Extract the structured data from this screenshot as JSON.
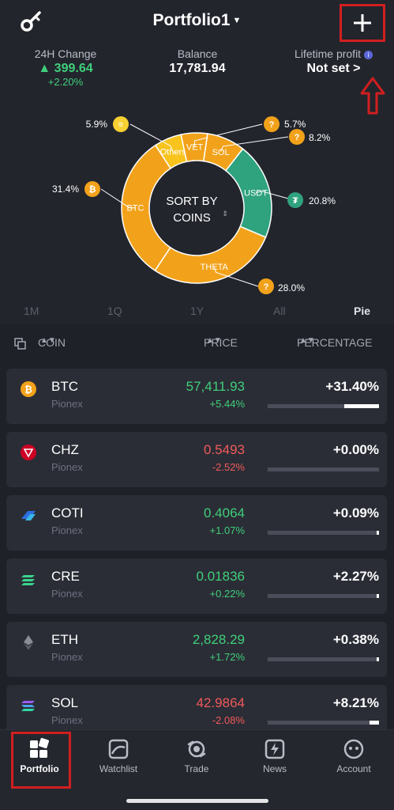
{
  "header": {
    "title": "Portfolio1",
    "stats": {
      "change_label": "24H Change",
      "change_value": "▲ 399.64",
      "change_pct": "+2.20%",
      "balance_label": "Balance",
      "balance_value": "17,781.94",
      "profit_label": "Lifetime profit",
      "profit_value": "Not set >"
    }
  },
  "chart_data": {
    "type": "pie",
    "center_label": "SORT BY COINS",
    "slices": [
      {
        "label": "USDT",
        "value": 20.8,
        "color": "#2fa27e",
        "pct_text": "20.8%"
      },
      {
        "label": "THETA",
        "value": 28.0,
        "color": "#f2a21a",
        "pct_text": "28.0%"
      },
      {
        "label": "BTC",
        "value": 31.4,
        "color": "#f2a21a",
        "pct_text": "31.4%"
      },
      {
        "label": "Others",
        "value": 5.9,
        "color": "#f7c31c",
        "pct_text": "5.9%"
      },
      {
        "label": "VET",
        "value": 5.7,
        "color": "#f2a21a",
        "pct_text": "5.7%"
      },
      {
        "label": "SOL",
        "value": 8.2,
        "color": "#f2a21a",
        "pct_text": "8.2%"
      }
    ]
  },
  "ranges": {
    "r1": "1M",
    "r2": "1Q",
    "r3": "1Y",
    "r4": "All",
    "r5": "Pie"
  },
  "columns": {
    "coin": "COIN",
    "price": "PRICE",
    "percentage": "PERCENTAGE"
  },
  "coins": [
    {
      "symbol": "BTC",
      "exchange": "Pionex",
      "price": "57,411.93",
      "change": "+5.44%",
      "trend": "up",
      "percentage": "+31.40%",
      "bar": 0.314,
      "icon": "bitcoin-icon"
    },
    {
      "symbol": "CHZ",
      "exchange": "Pionex",
      "price": "0.5493",
      "change": "-2.52%",
      "trend": "down",
      "percentage": "+0.00%",
      "bar": 0.0,
      "icon": "chiliz-icon"
    },
    {
      "symbol": "COTI",
      "exchange": "Pionex",
      "price": "0.4064",
      "change": "+1.07%",
      "trend": "up",
      "percentage": "+0.09%",
      "bar": 0.0009,
      "icon": "coti-icon"
    },
    {
      "symbol": "CRE",
      "exchange": "Pionex",
      "price": "0.01836",
      "change": "+0.22%",
      "trend": "up",
      "percentage": "+2.27%",
      "bar": 0.0227,
      "icon": "carry-icon"
    },
    {
      "symbol": "ETH",
      "exchange": "Pionex",
      "price": "2,828.29",
      "change": "+1.72%",
      "trend": "up",
      "percentage": "+0.38%",
      "bar": 0.0038,
      "icon": "ethereum-icon"
    },
    {
      "symbol": "SOL",
      "exchange": "Pionex",
      "price": "42.9864",
      "change": "-2.08%",
      "trend": "down",
      "percentage": "+8.21%",
      "bar": 0.0821,
      "icon": "solana-icon"
    }
  ],
  "tabs": {
    "portfolio": "Portfolio",
    "watchlist": "Watchlist",
    "trade": "Trade",
    "news": "News",
    "account": "Account"
  },
  "colors": {
    "up": "#3fcf7a",
    "down": "#f05a5a",
    "highlight": "#d01f1f"
  }
}
